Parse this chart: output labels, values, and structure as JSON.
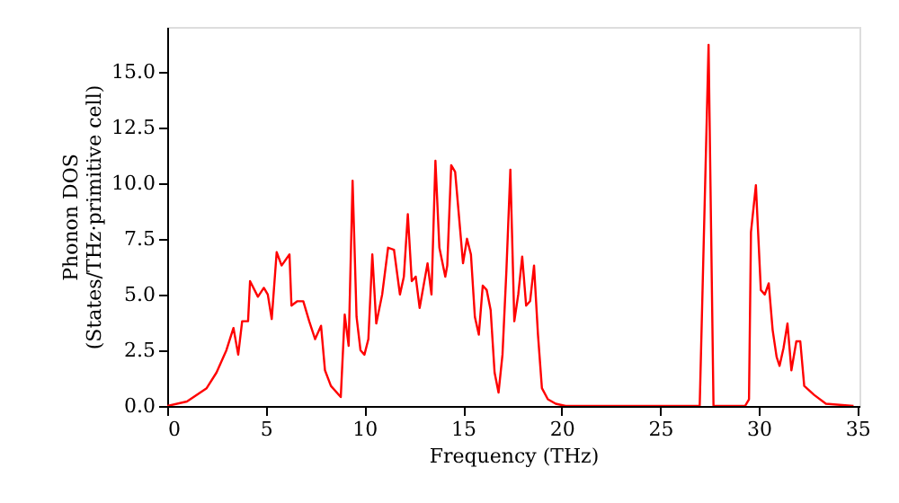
{
  "chart_data": {
    "type": "line",
    "xlabel": "Frequency (THz)",
    "ylabel": "Phonon DOS\n(States/THz·primitive cell)",
    "series": [
      {
        "color": "#ff0000",
        "x": [
          0,
          1,
          2,
          2.5,
          3,
          3.36,
          3.6,
          3.8,
          4.1,
          4.2,
          4.6,
          4.9,
          5.1,
          5.3,
          5.55,
          5.8,
          6.2,
          6.3,
          6.6,
          6.9,
          7.2,
          7.5,
          7.8,
          8.0,
          8.3,
          8.8,
          9.0,
          9.2,
          9.4,
          9.6,
          9.8,
          10.0,
          10.2,
          10.4,
          10.6,
          10.9,
          11.2,
          11.5,
          11.8,
          12.0,
          12.2,
          12.4,
          12.6,
          12.8,
          13.2,
          13.4,
          13.6,
          13.8,
          14.1,
          14.2,
          14.4,
          14.6,
          15.0,
          15.2,
          15.4,
          15.6,
          15.8,
          16.0,
          16.2,
          16.4,
          16.6,
          16.8,
          17.0,
          17.2,
          17.4,
          17.6,
          17.8,
          18.0,
          18.2,
          18.4,
          18.6,
          18.8,
          19.0,
          19.3,
          19.7,
          20.2,
          27.0,
          27.45,
          27.7,
          29.3,
          29.5,
          29.6,
          29.85,
          30.1,
          30.3,
          30.5,
          30.7,
          30.9,
          31.05,
          31.25,
          31.45,
          31.65,
          31.9,
          32.1,
          32.3,
          32.8,
          33.4,
          34.8
        ],
        "values": [
          0,
          0.2,
          0.8,
          1.5,
          2.5,
          3.5,
          2.3,
          3.8,
          3.8,
          5.6,
          4.9,
          5.3,
          5.0,
          3.9,
          6.9,
          6.3,
          6.8,
          4.5,
          4.7,
          4.7,
          3.8,
          3.0,
          3.6,
          1.6,
          0.9,
          0.4,
          4.1,
          2.7,
          10.1,
          4.0,
          2.5,
          2.3,
          3.0,
          6.8,
          3.7,
          5.0,
          7.1,
          7.0,
          5.0,
          5.8,
          8.6,
          5.6,
          5.8,
          4.4,
          6.4,
          5.0,
          11.0,
          7.1,
          5.8,
          6.3,
          10.8,
          10.5,
          6.4,
          7.5,
          6.8,
          4.0,
          3.2,
          5.4,
          5.2,
          4.3,
          1.5,
          0.6,
          2.3,
          6.1,
          10.6,
          3.8,
          5.0,
          6.7,
          4.5,
          4.7,
          6.3,
          3.2,
          0.8,
          0.3,
          0.1,
          0,
          0,
          16.2,
          0,
          0,
          0.3,
          7.8,
          9.9,
          5.2,
          5.0,
          5.5,
          3.4,
          2.2,
          1.8,
          2.6,
          3.7,
          1.6,
          2.9,
          2.9,
          0.9,
          0.5,
          0.1,
          0
        ]
      }
    ],
    "xlim": [
      0,
      35.1
    ],
    "ylim": [
      0,
      17.0
    ],
    "xticks": [
      0,
      5,
      10,
      15,
      20,
      25,
      30,
      35
    ],
    "yticks": [
      {
        "value": 0,
        "label": "0.0"
      },
      {
        "value": 2.5,
        "label": "2.5"
      },
      {
        "value": 5,
        "label": "5.0"
      },
      {
        "value": 7.5,
        "label": "7.5"
      },
      {
        "value": 10,
        "label": "10.0"
      },
      {
        "value": 12.5,
        "label": "12.5"
      },
      {
        "value": 15,
        "label": "15.0"
      }
    ],
    "grid": false,
    "line_style": "solid"
  }
}
